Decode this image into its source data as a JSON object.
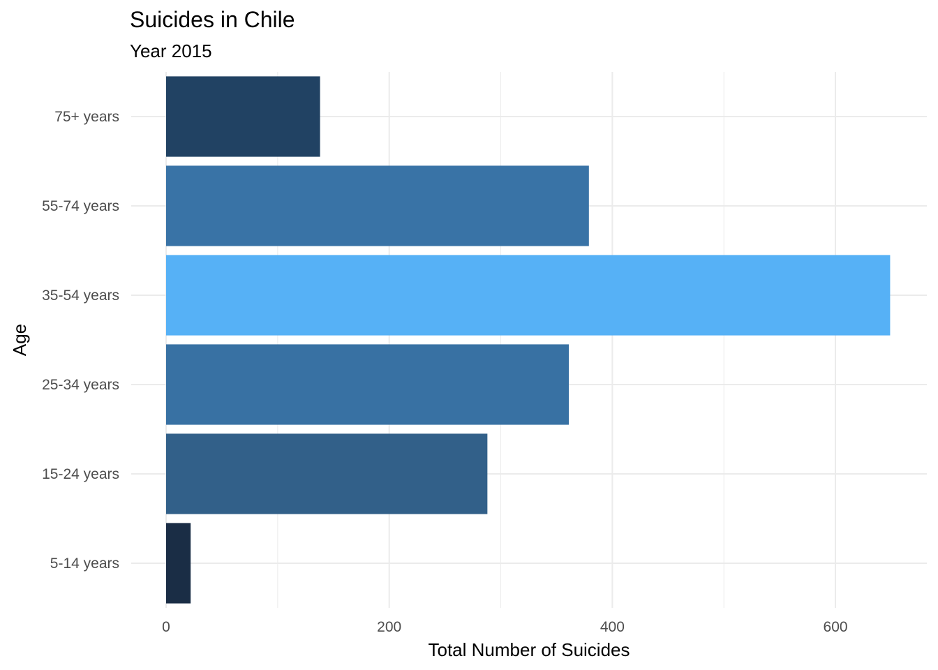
{
  "chart_data": {
    "type": "bar",
    "orientation": "horizontal",
    "title": "Suicides in Chile",
    "subtitle": "Year 2015",
    "xlabel": "Total Number of Suicides",
    "ylabel": "Age",
    "categories": [
      "5-14 years",
      "15-24 years",
      "25-34 years",
      "35-54 years",
      "55-74 years",
      "75+ years"
    ],
    "values": [
      22,
      288,
      361,
      649,
      379,
      138
    ],
    "bar_colors": [
      "#1a2d45",
      "#326089",
      "#3871a3",
      "#56b1f6",
      "#3973a6",
      "#214263"
    ],
    "xlim": [
      -13,
      682
    ],
    "xticks": [
      0,
      200,
      400,
      600
    ],
    "xtick_labels": [
      "0",
      "200",
      "400",
      "600"
    ],
    "grid": true,
    "legend": "none"
  }
}
